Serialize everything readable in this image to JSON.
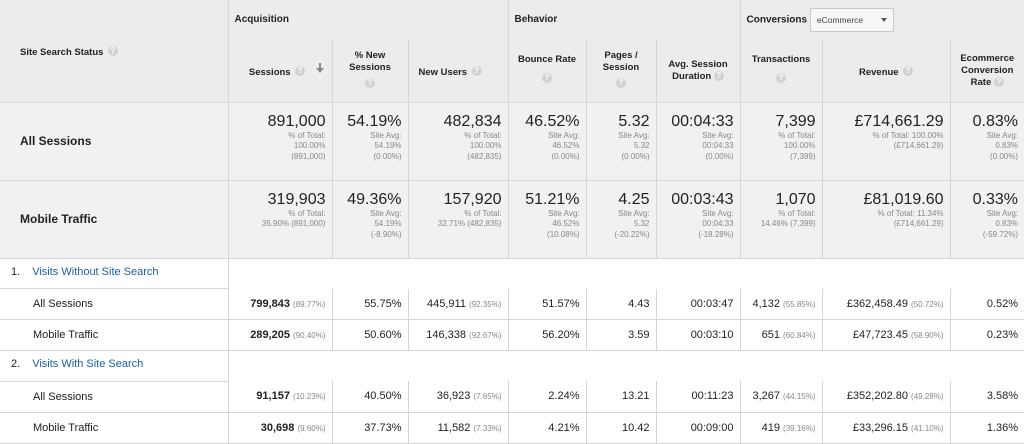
{
  "header": {
    "dimension_label": "Site Search Status",
    "groups": {
      "acquisition": "Acquisition",
      "behavior": "Behavior",
      "conversions": "Conversions"
    },
    "conversion_select": "eCommerce",
    "metrics": {
      "sessions": "Sessions",
      "pct_new_sessions": [
        "% New",
        "Sessions"
      ],
      "new_users": "New Users",
      "bounce_rate": "Bounce Rate",
      "pages_session": [
        "Pages /",
        "Session"
      ],
      "avg_duration": [
        "Avg. Session",
        "Duration"
      ],
      "transactions": "Transactions",
      "revenue": "Revenue",
      "ecr": [
        "Ecommerce",
        "Conversion",
        "Rate"
      ]
    }
  },
  "summary": [
    {
      "label": "All Sessions",
      "sessions": [
        "891,000",
        "% of Total:",
        "100.00%",
        "(891,000)"
      ],
      "pct_new": [
        "54.19%",
        "Site Avg:",
        "54.19%",
        "(0.00%)"
      ],
      "new_users": [
        "482,834",
        "% of Total:",
        "100.00%",
        "(482,835)"
      ],
      "bounce": [
        "46.52%",
        "Site Avg:",
        "46.52%",
        "(0.00%)"
      ],
      "pages": [
        "5.32",
        "Site Avg:",
        "5.32",
        "(0.00%)"
      ],
      "duration": [
        "00:04:33",
        "Site Avg:",
        "00:04:33",
        "(0.00%)"
      ],
      "transactions": [
        "7,399",
        "% of Total:",
        "100.00%",
        "(7,399)"
      ],
      "revenue": [
        "£714,661.29",
        "% of Total: 100.00%",
        "(£714,661.29)",
        ""
      ],
      "ecr": [
        "0.83%",
        "Site Avg:",
        "0.83%",
        "(0.00%)"
      ]
    },
    {
      "label": "Mobile Traffic",
      "sessions": [
        "319,903",
        "% of Total:",
        "35.90% (891,000)",
        ""
      ],
      "pct_new": [
        "49.36%",
        "Site Avg:",
        "54.19%",
        "(-8.90%)"
      ],
      "new_users": [
        "157,920",
        "% of Total:",
        "32.71% (482,835)",
        ""
      ],
      "bounce": [
        "51.21%",
        "Site Avg:",
        "46.52%",
        "(10.08%)"
      ],
      "pages": [
        "4.25",
        "Site Avg:",
        "5.32",
        "(-20.22%)"
      ],
      "duration": [
        "00:03:43",
        "Site Avg:",
        "00:04:33",
        "(-18.28%)"
      ],
      "transactions": [
        "1,070",
        "% of Total:",
        "14.46% (7,399)",
        ""
      ],
      "revenue": [
        "£81,019.60",
        "% of Total: 11.34%",
        "(£714,661.29)",
        ""
      ],
      "ecr": [
        "0.33%",
        "Site Avg:",
        "0.83%",
        "(-59.72%)"
      ]
    }
  ],
  "segments": [
    {
      "num": "1.",
      "label": "Visits Without Site Search",
      "rows": [
        {
          "label": "All Sessions",
          "sessions": "799,843",
          "sessions_pct": "(89.77%)",
          "pct_new": "55.75%",
          "new_users": "445,911",
          "new_users_pct": "(92.35%)",
          "bounce": "51.57%",
          "pages": "4.43",
          "duration": "00:03:47",
          "transactions": "4,132",
          "transactions_pct": "(55.85%)",
          "revenue": "£362,458.49",
          "revenue_pct": "(50.72%)",
          "ecr": "0.52%"
        },
        {
          "label": "Mobile Traffic",
          "sessions": "289,205",
          "sessions_pct": "(90.40%)",
          "pct_new": "50.60%",
          "new_users": "146,338",
          "new_users_pct": "(92.67%)",
          "bounce": "56.20%",
          "pages": "3.59",
          "duration": "00:03:10",
          "transactions": "651",
          "transactions_pct": "(60.84%)",
          "revenue": "£47,723.45",
          "revenue_pct": "(58.90%)",
          "ecr": "0.23%"
        }
      ]
    },
    {
      "num": "2.",
      "label": "Visits With Site Search",
      "rows": [
        {
          "label": "All Sessions",
          "sessions": "91,157",
          "sessions_pct": "(10.23%)",
          "pct_new": "40.50%",
          "new_users": "36,923",
          "new_users_pct": "(7.65%)",
          "bounce": "2.24%",
          "pages": "13.21",
          "duration": "00:11:23",
          "transactions": "3,267",
          "transactions_pct": "(44.15%)",
          "revenue": "£352,202.80",
          "revenue_pct": "(49.28%)",
          "ecr": "3.58%"
        },
        {
          "label": "Mobile Traffic",
          "sessions": "30,698",
          "sessions_pct": "(9.60%)",
          "pct_new": "37.73%",
          "new_users": "11,582",
          "new_users_pct": "(7.33%)",
          "bounce": "4.21%",
          "pages": "10.42",
          "duration": "00:09:00",
          "transactions": "419",
          "transactions_pct": "(39.16%)",
          "revenue": "£33,296.15",
          "revenue_pct": "(41.10%)",
          "ecr": "1.36%"
        }
      ]
    }
  ]
}
